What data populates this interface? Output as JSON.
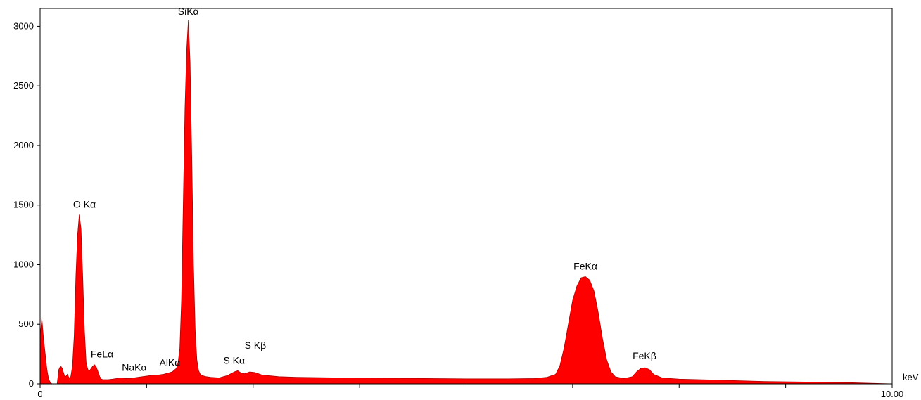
{
  "chart_data": {
    "type": "area",
    "xlabel": "keV",
    "ylabel": "",
    "xlim": [
      0,
      10
    ],
    "ylim": [
      0,
      3150
    ],
    "grid": false,
    "fill_color": "#ff0000",
    "x_tick_labels": [
      {
        "value": 0,
        "label": "0"
      },
      {
        "value": 10,
        "label": "10.00"
      }
    ],
    "y_ticks": [
      0,
      500,
      1000,
      1500,
      2000,
      2500,
      3000
    ],
    "x_minor_ticks": [
      0,
      1.25,
      2.5,
      3.75,
      5,
      6.25,
      7.5,
      8.75,
      10
    ],
    "peaks": [
      {
        "label": "O Kα",
        "x": 0.52,
        "y": 1420
      },
      {
        "label": "FeLα",
        "x": 0.71,
        "y": 150
      },
      {
        "label": "NaKα",
        "x": 1.04,
        "y": 50
      },
      {
        "label": "AlKα",
        "x": 1.49,
        "y": 90
      },
      {
        "label": "SiKα",
        "x": 1.74,
        "y": 3050
      },
      {
        "label": "S Kα",
        "x": 2.31,
        "y": 110
      },
      {
        "label": "S Kβ",
        "x": 2.46,
        "y": 130
      },
      {
        "label": "FeKα",
        "x": 6.4,
        "y": 900
      },
      {
        "label": "FeKβ",
        "x": 7.06,
        "y": 135
      }
    ],
    "spectrum": {
      "x": [
        0.0,
        0.02,
        0.04,
        0.06,
        0.08,
        0.1,
        0.12,
        0.14,
        0.16,
        0.18,
        0.2,
        0.22,
        0.24,
        0.26,
        0.28,
        0.3,
        0.32,
        0.34,
        0.36,
        0.38,
        0.4,
        0.42,
        0.44,
        0.46,
        0.48,
        0.5,
        0.52,
        0.54,
        0.56,
        0.58,
        0.6,
        0.62,
        0.64,
        0.66,
        0.68,
        0.7,
        0.72,
        0.74,
        0.76,
        0.78,
        0.8,
        0.85,
        0.9,
        0.95,
        1.0,
        1.05,
        1.1,
        1.2,
        1.3,
        1.4,
        1.45,
        1.5,
        1.55,
        1.6,
        1.62,
        1.64,
        1.66,
        1.68,
        1.7,
        1.72,
        1.74,
        1.76,
        1.78,
        1.8,
        1.82,
        1.84,
        1.86,
        1.88,
        1.9,
        1.95,
        2.0,
        2.1,
        2.2,
        2.28,
        2.32,
        2.36,
        2.4,
        2.46,
        2.52,
        2.6,
        2.8,
        3.0,
        3.5,
        4.0,
        4.5,
        5.0,
        5.5,
        5.8,
        5.95,
        6.05,
        6.1,
        6.15,
        6.2,
        6.25,
        6.3,
        6.35,
        6.4,
        6.45,
        6.5,
        6.55,
        6.6,
        6.65,
        6.7,
        6.75,
        6.85,
        6.95,
        7.0,
        7.05,
        7.1,
        7.15,
        7.2,
        7.3,
        7.5,
        8.0,
        8.5,
        9.0,
        9.5,
        10.0
      ],
      "y": [
        400,
        550,
        380,
        250,
        120,
        40,
        10,
        0,
        0,
        0,
        0,
        120,
        150,
        130,
        80,
        60,
        80,
        50,
        60,
        150,
        400,
        900,
        1250,
        1420,
        1300,
        900,
        450,
        180,
        120,
        110,
        130,
        150,
        160,
        140,
        100,
        60,
        40,
        35,
        35,
        35,
        35,
        40,
        45,
        50,
        45,
        45,
        50,
        60,
        70,
        75,
        80,
        90,
        100,
        130,
        180,
        300,
        700,
        1500,
        2300,
        2800,
        3050,
        2700,
        1900,
        1000,
        450,
        200,
        110,
        80,
        70,
        60,
        55,
        50,
        70,
        100,
        110,
        90,
        85,
        100,
        95,
        75,
        60,
        55,
        50,
        48,
        45,
        42,
        42,
        45,
        55,
        80,
        150,
        300,
        500,
        700,
        820,
        890,
        900,
        870,
        780,
        600,
        380,
        200,
        100,
        60,
        45,
        60,
        100,
        130,
        135,
        120,
        80,
        50,
        40,
        30,
        20,
        15,
        10,
        0
      ]
    }
  }
}
